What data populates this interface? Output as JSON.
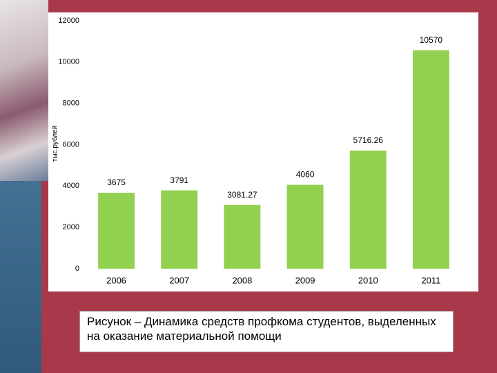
{
  "chart_data": {
    "type": "bar",
    "y_label": "тыс.рублей",
    "categories": [
      "2006",
      "2007",
      "2008",
      "2009",
      "2010",
      "2011"
    ],
    "values": [
      3675,
      3791,
      3081.27,
      4060,
      5716.26,
      10570
    ],
    "color": "#92d050",
    "ylim": [
      0,
      12000
    ],
    "yticks": [
      0,
      2000,
      4000,
      6000,
      8000,
      10000,
      12000
    ],
    "grid": false
  },
  "caption": "Рисунок – Динамика средств профкома студентов, выделенных на оказание материальной помощи"
}
